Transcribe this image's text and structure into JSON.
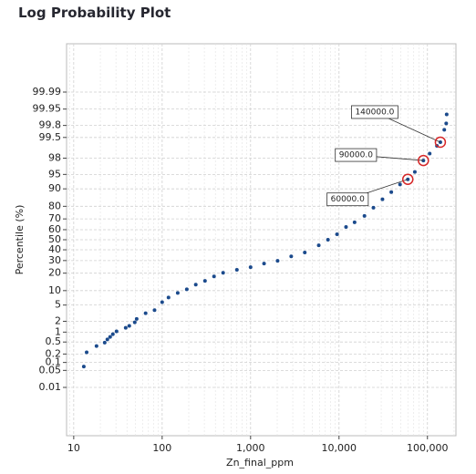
{
  "chart_data": {
    "type": "scatter",
    "title": "Log Probability Plot",
    "x_label": "Zn_final_ppm",
    "y_label": "Percentile (%)",
    "x_log": true,
    "y_probability": true,
    "grid": true,
    "minor_grid": true,
    "color": "#1b4a8c",
    "xlim": [
      8.3,
      210000
    ],
    "xticks": [
      10,
      100,
      {
        "value": 1000,
        "label": "1,000"
      },
      {
        "value": 10000,
        "label": "10,000"
      },
      {
        "value": 100000,
        "label": "100,000"
      }
    ],
    "ylim": [
      4e-05,
      99.99996
    ],
    "yticks": [
      0.01,
      0.05,
      0.1,
      0.2,
      0.5,
      1,
      2,
      5,
      10,
      20,
      30,
      40,
      50,
      60,
      70,
      80,
      90,
      95,
      98,
      99.5,
      99.8,
      99.95,
      99.99
    ],
    "x": [
      13,
      14,
      18.1,
      22.4,
      24,
      25.8,
      27.7,
      30.5,
      38.7,
      42.5,
      49,
      51.5,
      65,
      82,
      100,
      118,
      150,
      190,
      240,
      305,
      386,
      489,
      700,
      1000,
      1420,
      2020,
      2880,
      4100,
      5900,
      7500,
      9500,
      12000,
      15000,
      19400,
      24500,
      31000,
      39000,
      49000,
      60000,
      72000,
      90000,
      106000,
      128000,
      140000,
      155000,
      163000,
      165000
    ],
    "y": [
      0.07,
      0.23,
      0.37,
      0.48,
      0.6,
      0.72,
      0.87,
      1.05,
      1.33,
      1.5,
      1.88,
      2.3,
      3.2,
      3.8,
      5.8,
      7.3,
      9,
      10.6,
      12.9,
      15,
      17.8,
      20.3,
      22.4,
      24.5,
      27.4,
      29.8,
      33.8,
      37.4,
      44.4,
      50,
      55.5,
      62.6,
      67,
      72.6,
      79,
      84.6,
      88.5,
      91.8,
      93.6,
      95.6,
      97.7,
      98.5,
      99.1,
      99.3,
      99.72,
      99.83,
      99.92
    ],
    "annotations": [
      {
        "x": 60000,
        "y": 93.6,
        "label": "60000.0",
        "color": "#d62728"
      },
      {
        "x": 90000,
        "y": 97.7,
        "label": "90000.0",
        "color": "#d62728"
      },
      {
        "x": 140000,
        "y": 99.3,
        "label": "140000.0",
        "color": "#d62728"
      }
    ]
  }
}
